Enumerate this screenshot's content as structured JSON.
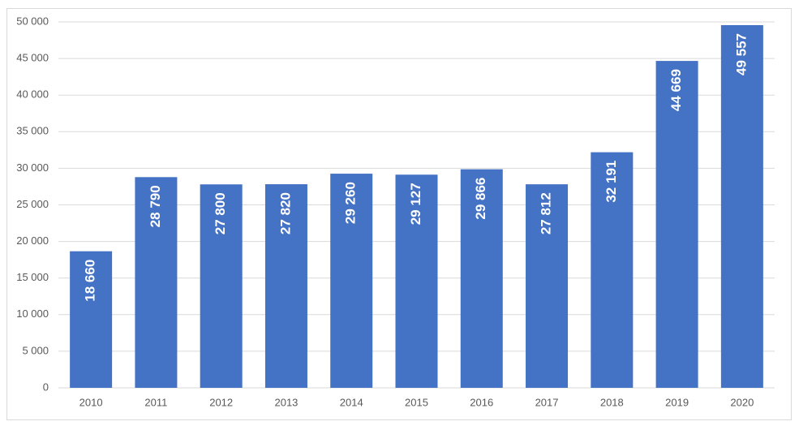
{
  "chart_data": {
    "type": "bar",
    "categories": [
      "2010",
      "2011",
      "2012",
      "2013",
      "2014",
      "2015",
      "2016",
      "2017",
      "2018",
      "2019",
      "2020"
    ],
    "values": [
      18660,
      28790,
      27800,
      27820,
      29260,
      29127,
      29866,
      27812,
      32191,
      44669,
      49557
    ],
    "value_labels": [
      "18 660",
      "28 790",
      "27 800",
      "27 820",
      "29 260",
      "29 127",
      "29 866",
      "27 812",
      "32 191",
      "44 669",
      "49 557"
    ],
    "color": "#4472c4",
    "ylim": [
      0,
      50000
    ],
    "yticks": [
      0,
      {
        "value": 5000,
        "label": "5 000"
      },
      {
        "value": 10000,
        "label": "10 000"
      },
      {
        "value": 15000,
        "label": "15 000"
      },
      {
        "value": 20000,
        "label": "20 000"
      },
      {
        "value": 25000,
        "label": "25 000"
      },
      {
        "value": 30000,
        "label": "30 000"
      },
      {
        "value": 35000,
        "label": "35 000"
      },
      {
        "value": 40000,
        "label": "40 000"
      },
      {
        "value": 45000,
        "label": "45 000"
      },
      {
        "value": 50000,
        "label": "50 000"
      }
    ],
    "grid": true
  }
}
